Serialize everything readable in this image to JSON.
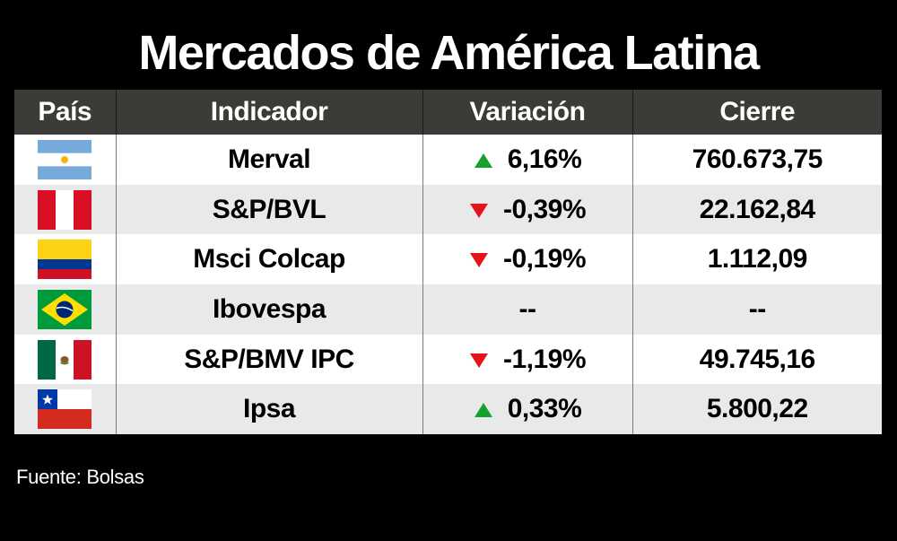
{
  "title": "Mercados de América Latina",
  "source": "Fuente: Bolsas",
  "colors": {
    "up": "#16a12e",
    "down": "#e3151a",
    "header_bg": "#3d3b37"
  },
  "chart_data": {
    "type": "table",
    "title": "Mercados de América Latina",
    "columns": [
      "País",
      "Indicador",
      "Variación",
      "Cierre"
    ],
    "rows": [
      {
        "flag": "argentina-flag-icon",
        "indicator": "Merval",
        "direction": "up",
        "variation": "6,16%",
        "close": "760.673,75"
      },
      {
        "flag": "peru-flag-icon",
        "indicator": "S&P/BVL",
        "direction": "down",
        "variation": "-0,39%",
        "close": "22.162,84"
      },
      {
        "flag": "colombia-flag-icon",
        "indicator": "Msci Colcap",
        "direction": "down",
        "variation": "-0,19%",
        "close": "1.112,09"
      },
      {
        "flag": "brazil-flag-icon",
        "indicator": "Ibovespa",
        "direction": "none",
        "variation": "--",
        "close": "--"
      },
      {
        "flag": "mexico-flag-icon",
        "indicator": "S&P/BMV IPC",
        "direction": "down",
        "variation": "-1,19%",
        "close": "49.745,16"
      },
      {
        "flag": "chile-flag-icon",
        "indicator": "Ipsa",
        "direction": "up",
        "variation": "0,33%",
        "close": "5.800,22"
      }
    ]
  }
}
